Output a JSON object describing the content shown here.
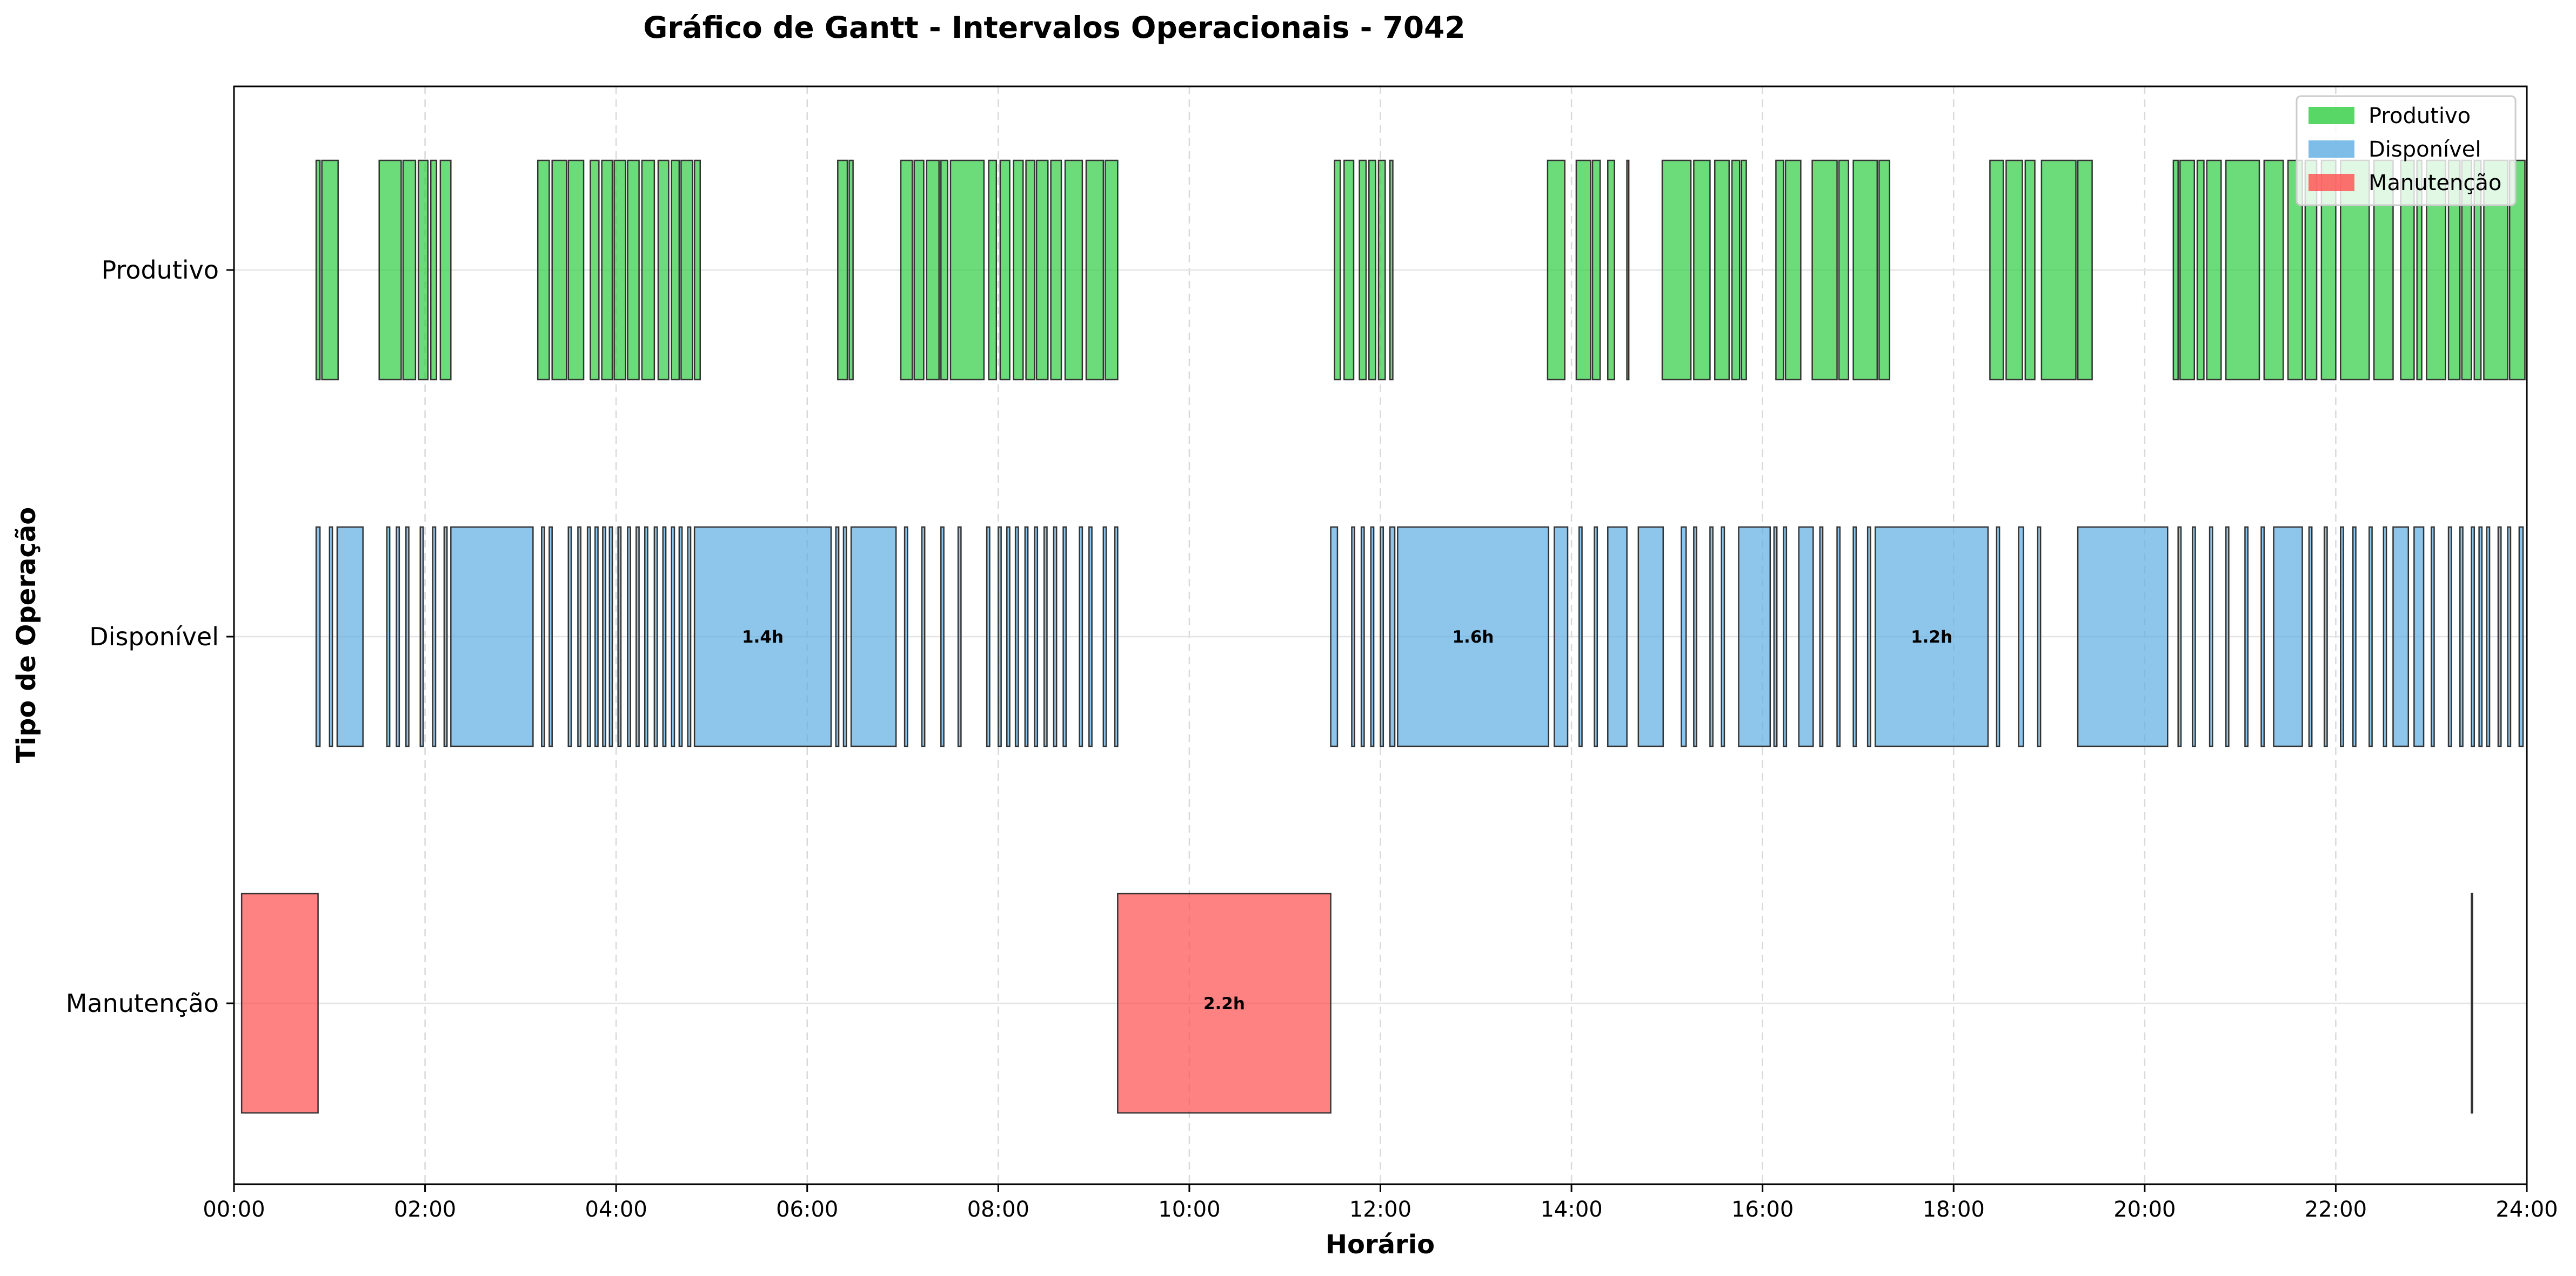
{
  "chart_data": {
    "type": "gantt",
    "title": "Gráfico de Gantt - Intervalos Operacionais - 7042",
    "xlabel": "Horário",
    "ylabel": "Tipo de Operação",
    "x_range_hours": [
      0,
      24
    ],
    "x_tick_labels": [
      "00:00",
      "02:00",
      "04:00",
      "06:00",
      "08:00",
      "10:00",
      "12:00",
      "14:00",
      "16:00",
      "18:00",
      "20:00",
      "22:00",
      "24:00"
    ],
    "grid": true,
    "legend_position": "top-right",
    "categories": [
      "Produtivo",
      "Disponível",
      "Manutenção"
    ],
    "colors": {
      "Produtivo": "#2ecc40",
      "Disponível": "#5dade2",
      "Manutenção": "#ff4d4d"
    },
    "legend": [
      "Produtivo",
      "Disponível",
      "Manutenção"
    ],
    "series": [
      {
        "name": "Produtivo",
        "intervals": [
          [
            0.86,
            0.9
          ],
          [
            0.92,
            1.09
          ],
          [
            1.52,
            1.75
          ],
          [
            1.77,
            1.9
          ],
          [
            1.93,
            2.03
          ],
          [
            2.06,
            2.12
          ],
          [
            2.16,
            2.27
          ],
          [
            3.18,
            3.3
          ],
          [
            3.33,
            3.48
          ],
          [
            3.5,
            3.66
          ],
          [
            3.73,
            3.82
          ],
          [
            3.85,
            3.96
          ],
          [
            3.98,
            4.1
          ],
          [
            4.12,
            4.24
          ],
          [
            4.27,
            4.4
          ],
          [
            4.44,
            4.55
          ],
          [
            4.58,
            4.66
          ],
          [
            4.68,
            4.8
          ],
          [
            4.82,
            4.88
          ],
          [
            6.32,
            6.42
          ],
          [
            6.44,
            6.48
          ],
          [
            6.98,
            7.1
          ],
          [
            7.12,
            7.22
          ],
          [
            7.25,
            7.38
          ],
          [
            7.4,
            7.47
          ],
          [
            7.5,
            7.85
          ],
          [
            7.9,
            7.98
          ],
          [
            8.02,
            8.12
          ],
          [
            8.16,
            8.26
          ],
          [
            8.29,
            8.38
          ],
          [
            8.4,
            8.52
          ],
          [
            8.55,
            8.66
          ],
          [
            8.7,
            8.88
          ],
          [
            8.92,
            9.1
          ],
          [
            9.12,
            9.25
          ],
          [
            11.52,
            11.58
          ],
          [
            11.62,
            11.72
          ],
          [
            11.78,
            11.85
          ],
          [
            11.88,
            11.95
          ],
          [
            11.98,
            12.05
          ],
          [
            12.1,
            12.13
          ],
          [
            13.75,
            13.93
          ],
          [
            14.05,
            14.2
          ],
          [
            14.22,
            14.3
          ],
          [
            14.38,
            14.45
          ],
          [
            14.58,
            14.6
          ],
          [
            14.95,
            15.25
          ],
          [
            15.28,
            15.45
          ],
          [
            15.5,
            15.65
          ],
          [
            15.68,
            15.76
          ],
          [
            15.78,
            15.83
          ],
          [
            16.14,
            16.22
          ],
          [
            16.24,
            16.4
          ],
          [
            16.52,
            16.78
          ],
          [
            16.8,
            16.9
          ],
          [
            16.95,
            17.2
          ],
          [
            17.22,
            17.33
          ],
          [
            18.38,
            18.52
          ],
          [
            18.55,
            18.72
          ],
          [
            18.75,
            18.85
          ],
          [
            18.92,
            19.28
          ],
          [
            19.3,
            19.45
          ],
          [
            20.3,
            20.35
          ],
          [
            20.37,
            20.52
          ],
          [
            20.55,
            20.62
          ],
          [
            20.65,
            20.8
          ],
          [
            20.85,
            21.2
          ],
          [
            21.25,
            21.45
          ],
          [
            21.5,
            21.65
          ],
          [
            21.68,
            21.8
          ],
          [
            21.85,
            22.0
          ],
          [
            22.05,
            22.35
          ],
          [
            22.4,
            22.6
          ],
          [
            22.68,
            22.82
          ],
          [
            22.85,
            22.9
          ],
          [
            22.95,
            23.15
          ],
          [
            23.18,
            23.3
          ],
          [
            23.32,
            23.42
          ],
          [
            23.45,
            23.52
          ],
          [
            23.55,
            23.8
          ],
          [
            23.82,
            23.98
          ]
        ]
      },
      {
        "name": "Disponível",
        "intervals": [
          [
            0.86,
            0.9
          ],
          [
            1.0,
            1.03
          ],
          [
            1.08,
            1.35
          ],
          [
            1.6,
            1.63
          ],
          [
            1.7,
            1.73
          ],
          [
            1.8,
            1.83
          ],
          [
            1.95,
            1.98
          ],
          [
            2.08,
            2.11
          ],
          [
            2.2,
            2.23
          ],
          [
            2.27,
            3.13
          ],
          [
            3.22,
            3.25
          ],
          [
            3.3,
            3.33
          ],
          [
            3.5,
            3.53
          ],
          [
            3.6,
            3.63
          ],
          [
            3.7,
            3.73
          ],
          [
            3.78,
            3.81
          ],
          [
            3.86,
            3.89
          ],
          [
            3.93,
            3.96
          ],
          [
            4.02,
            4.05
          ],
          [
            4.12,
            4.15
          ],
          [
            4.21,
            4.24
          ],
          [
            4.3,
            4.33
          ],
          [
            4.4,
            4.43
          ],
          [
            4.49,
            4.52
          ],
          [
            4.58,
            4.61
          ],
          [
            4.66,
            4.69
          ],
          [
            4.75,
            4.78
          ],
          [
            4.82,
            6.25
          ],
          [
            6.3,
            6.33
          ],
          [
            6.38,
            6.41
          ],
          [
            6.46,
            6.93
          ],
          [
            7.02,
            7.05
          ],
          [
            7.2,
            7.23
          ],
          [
            7.4,
            7.43
          ],
          [
            7.58,
            7.61
          ],
          [
            7.88,
            7.91
          ],
          [
            8.0,
            8.03
          ],
          [
            8.09,
            8.12
          ],
          [
            8.18,
            8.21
          ],
          [
            8.28,
            8.31
          ],
          [
            8.38,
            8.41
          ],
          [
            8.48,
            8.51
          ],
          [
            8.58,
            8.61
          ],
          [
            8.68,
            8.71
          ],
          [
            8.85,
            8.88
          ],
          [
            8.95,
            8.98
          ],
          [
            9.1,
            9.13
          ],
          [
            9.22,
            9.25
          ],
          [
            11.48,
            11.55
          ],
          [
            11.7,
            11.73
          ],
          [
            11.8,
            11.83
          ],
          [
            11.9,
            11.93
          ],
          [
            12.0,
            12.03
          ],
          [
            12.1,
            12.15
          ],
          [
            12.18,
            13.76
          ],
          [
            13.82,
            13.96
          ],
          [
            14.08,
            14.11
          ],
          [
            14.24,
            14.27
          ],
          [
            14.38,
            14.58
          ],
          [
            14.7,
            14.96
          ],
          [
            15.15,
            15.2
          ],
          [
            15.28,
            15.31
          ],
          [
            15.45,
            15.48
          ],
          [
            15.57,
            15.6
          ],
          [
            15.75,
            16.08
          ],
          [
            16.12,
            16.15
          ],
          [
            16.22,
            16.25
          ],
          [
            16.38,
            16.53
          ],
          [
            16.6,
            16.63
          ],
          [
            16.78,
            16.81
          ],
          [
            16.95,
            16.98
          ],
          [
            17.1,
            17.13
          ],
          [
            17.18,
            18.36
          ],
          [
            18.45,
            18.48
          ],
          [
            18.68,
            18.73
          ],
          [
            18.88,
            18.91
          ],
          [
            19.3,
            20.24
          ],
          [
            20.35,
            20.38
          ],
          [
            20.5,
            20.53
          ],
          [
            20.68,
            20.71
          ],
          [
            20.85,
            20.88
          ],
          [
            21.05,
            21.08
          ],
          [
            21.22,
            21.25
          ],
          [
            21.35,
            21.65
          ],
          [
            21.72,
            21.75
          ],
          [
            21.88,
            21.91
          ],
          [
            22.05,
            22.08
          ],
          [
            22.18,
            22.21
          ],
          [
            22.35,
            22.38
          ],
          [
            22.5,
            22.53
          ],
          [
            22.6,
            22.76
          ],
          [
            22.82,
            22.92
          ],
          [
            23.0,
            23.03
          ],
          [
            23.18,
            23.21
          ],
          [
            23.3,
            23.33
          ],
          [
            23.42,
            23.45
          ],
          [
            23.5,
            23.53
          ],
          [
            23.58,
            23.61
          ],
          [
            23.7,
            23.73
          ],
          [
            23.8,
            23.83
          ],
          [
            23.92,
            23.96
          ]
        ]
      },
      {
        "name": "Manutenção",
        "intervals": [
          [
            0.08,
            0.88
          ],
          [
            9.25,
            11.48
          ],
          [
            23.42,
            23.43
          ]
        ]
      }
    ],
    "bar_labels": [
      {
        "series": "Disponível",
        "start": 4.82,
        "end": 6.25,
        "text": "1.4h"
      },
      {
        "series": "Disponível",
        "start": 12.18,
        "end": 13.76,
        "text": "1.6h"
      },
      {
        "series": "Disponível",
        "start": 17.18,
        "end": 18.36,
        "text": "1.2h"
      },
      {
        "series": "Manutenção",
        "start": 9.25,
        "end": 11.48,
        "text": "2.2h"
      }
    ]
  }
}
